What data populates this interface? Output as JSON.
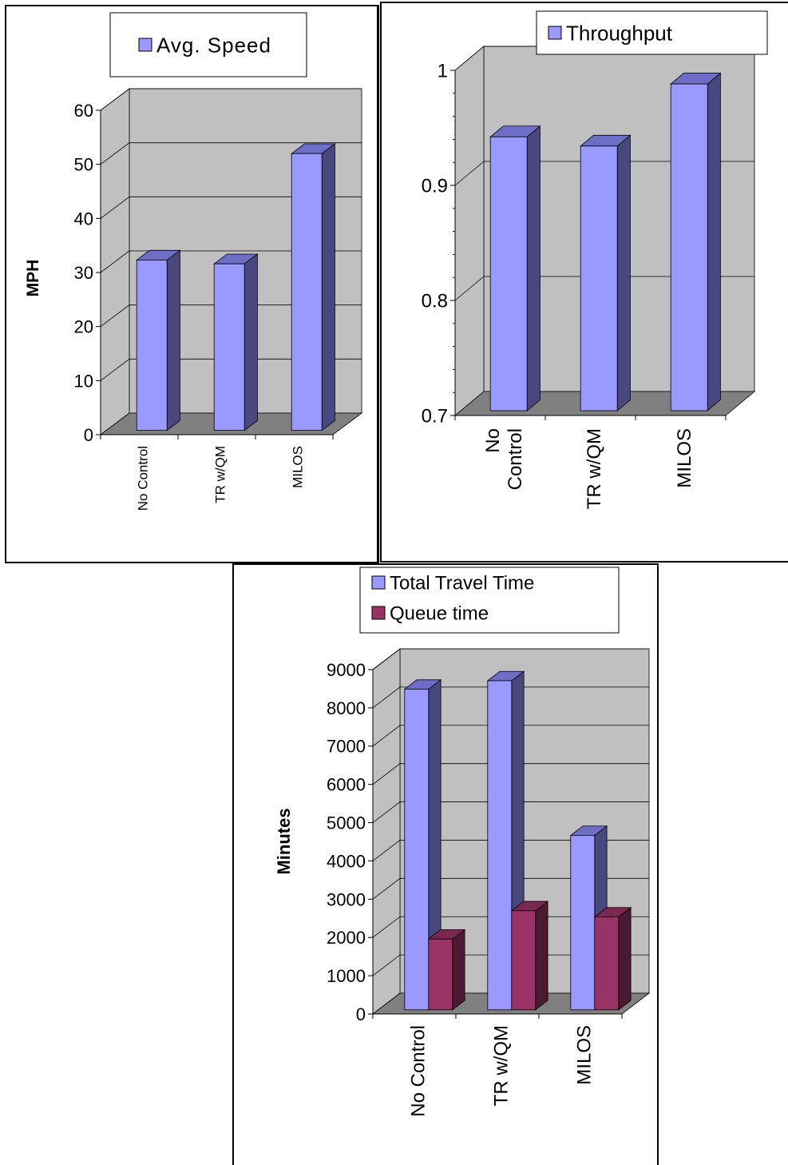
{
  "colors": {
    "blue_front": "#9999ff",
    "blue_side": "#48487f",
    "blue_top": "#6e6ec6",
    "maroon_front": "#993366",
    "maroon_side": "#4b1a32",
    "maroon_top": "#7a2851",
    "wall": "#c0c0c0",
    "floor": "#808080"
  },
  "chart_data": [
    {
      "type": "bar",
      "title": "",
      "ylabel": "MPH",
      "xlabel": "",
      "categories": [
        "No Control",
        "TR w/QM",
        "MILOS"
      ],
      "ylim": [
        0,
        60
      ],
      "yticks": [
        "0",
        "10",
        "20",
        "30",
        "40",
        "50",
        "60"
      ],
      "grid": true,
      "legend_position": "top",
      "series": [
        {
          "name": "Avg. Speed",
          "values": [
            31.5,
            30.8,
            51.2
          ],
          "color": "blue"
        }
      ]
    },
    {
      "type": "bar",
      "title": "",
      "ylabel": "",
      "xlabel": "",
      "categories": [
        "No\nControl",
        "TR w/QM",
        "MILOS"
      ],
      "ylim": [
        0.7,
        1.0
      ],
      "yticks": [
        "0.7",
        "0.8",
        "0.9",
        "1"
      ],
      "grid": true,
      "legend_position": "top-right",
      "series": [
        {
          "name": "Throughput",
          "values": [
            0.938,
            0.93,
            0.984
          ],
          "color": "blue"
        }
      ]
    },
    {
      "type": "bar",
      "title": "",
      "ylabel": "Minutes",
      "xlabel": "",
      "categories": [
        "No Control",
        "TR w/QM",
        "MILOS"
      ],
      "ylim": [
        0,
        9000
      ],
      "yticks": [
        "0",
        "1000",
        "2000",
        "3000",
        "4000",
        "5000",
        "6000",
        "7000",
        "8000",
        "9000"
      ],
      "grid": true,
      "legend_position": "top",
      "series": [
        {
          "name": "Total Travel Time",
          "values": [
            8380,
            8600,
            4560
          ],
          "color": "blue"
        },
        {
          "name": "Queue time",
          "values": [
            1850,
            2590,
            2430
          ],
          "color": "maroon"
        }
      ]
    }
  ]
}
